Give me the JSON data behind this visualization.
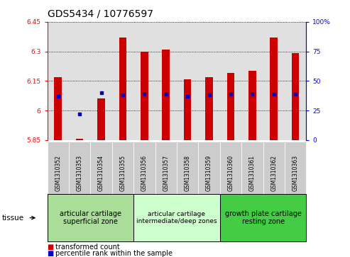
{
  "title": "GDS5434 / 10776597",
  "samples": [
    "GSM1310352",
    "GSM1310353",
    "GSM1310354",
    "GSM1310355",
    "GSM1310356",
    "GSM1310357",
    "GSM1310358",
    "GSM1310359",
    "GSM1310360",
    "GSM1310361",
    "GSM1310362",
    "GSM1310363"
  ],
  "transformed_count": [
    6.17,
    5.855,
    6.06,
    6.37,
    6.3,
    6.31,
    6.16,
    6.17,
    6.19,
    6.2,
    6.37,
    6.29
  ],
  "percentile_rank": [
    37,
    22,
    40,
    38,
    39,
    39,
    37,
    38,
    39,
    39,
    39,
    39
  ],
  "bar_color": "#cc0000",
  "dot_color": "#0000cc",
  "ymin": 5.85,
  "ymax": 6.45,
  "y2min": 0,
  "y2max": 100,
  "yticks": [
    5.85,
    6.0,
    6.15,
    6.3,
    6.45
  ],
  "ytick_labels": [
    "5.85",
    "6",
    "6.15",
    "6.3",
    "6.45"
  ],
  "y2ticks": [
    0,
    25,
    50,
    75,
    100
  ],
  "y2tick_labels": [
    "0",
    "25",
    "50",
    "75",
    "100%"
  ],
  "groups": [
    {
      "label": "articular cartilage\nsuperficial zone",
      "start": 0,
      "end": 4,
      "color": "#aadd99",
      "fontsize": 7
    },
    {
      "label": "articular cartilage\nintermediate/deep zones",
      "start": 4,
      "end": 8,
      "color": "#ccffcc",
      "fontsize": 6.5
    },
    {
      "label": "growth plate cartilage\nresting zone",
      "start": 8,
      "end": 12,
      "color": "#44cc44",
      "fontsize": 7
    }
  ],
  "legend_red_label": "transformed count",
  "legend_blue_label": "percentile rank within the sample",
  "tissue_label": "tissue",
  "bar_width": 0.35,
  "title_fontsize": 10,
  "tick_fontsize": 6.5,
  "label_fontsize": 7
}
